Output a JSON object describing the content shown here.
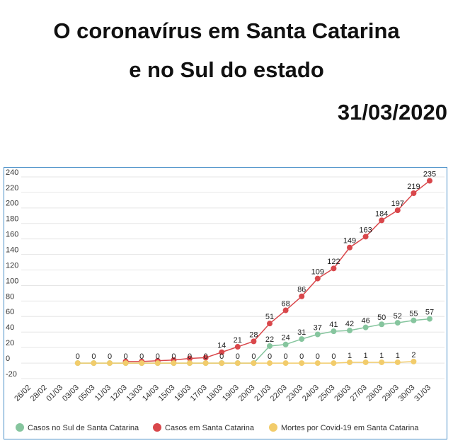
{
  "chart_data": {
    "type": "line",
    "title_lines": [
      "O coronavírus em Santa Catarina",
      "e no Sul do estado"
    ],
    "date": "31/03/2020",
    "categories": [
      "26/02",
      "28/02",
      "01/03",
      "03/03",
      "05/03",
      "11/03",
      "12/03",
      "13/03",
      "14/03",
      "15/03",
      "16/03",
      "17/03",
      "18/03",
      "19/03",
      "20/03",
      "21/03",
      "22/03",
      "23/03",
      "24/03",
      "25/03",
      "26/03",
      "27/03",
      "28/03",
      "29/03",
      "30/03",
      "31/03"
    ],
    "series": [
      {
        "name": "Casos no Sul de Santa Catarina",
        "color": "#86c59e",
        "values": [
          null,
          null,
          null,
          0,
          0,
          0,
          0,
          0,
          0,
          0,
          0,
          0,
          0,
          0,
          0,
          22,
          24,
          31,
          37,
          41,
          42,
          46,
          50,
          52,
          55,
          57
        ],
        "value_labels": [
          null,
          null,
          null,
          null,
          null,
          null,
          null,
          null,
          null,
          null,
          null,
          null,
          null,
          null,
          null,
          "22",
          "24",
          "31",
          "37",
          "41",
          "42",
          "46",
          "50",
          "52",
          "55",
          "57"
        ]
      },
      {
        "name": "Casos em Santa Catarina",
        "color": "#d9474b",
        "values": [
          null,
          null,
          null,
          null,
          null,
          null,
          2,
          2,
          3,
          4,
          6,
          7,
          14,
          21,
          28,
          51,
          68,
          86,
          109,
          122,
          149,
          163,
          184,
          197,
          219,
          235
        ],
        "value_labels": [
          null,
          null,
          null,
          null,
          null,
          null,
          null,
          null,
          null,
          null,
          null,
          null,
          "14",
          "21",
          "28",
          "51",
          "68",
          "86",
          "109",
          "122",
          "149",
          "163",
          "184",
          "197",
          "219",
          "235"
        ]
      },
      {
        "name": "Mortes por Covid-19 em Santa Catarina",
        "color": "#f2cc6b",
        "values": [
          null,
          null,
          null,
          0,
          0,
          0,
          0,
          0,
          0,
          0,
          0,
          0,
          0,
          0,
          0,
          0,
          0,
          0,
          0,
          0,
          1,
          1,
          1,
          1,
          2,
          null
        ],
        "value_labels": [
          null,
          null,
          null,
          "0",
          "0",
          "0",
          "0",
          "0",
          "0",
          "0",
          "0",
          "0",
          "0",
          "0",
          "0",
          "0",
          "0",
          "0",
          "0",
          "0",
          "1",
          "1",
          "1",
          "1",
          "2",
          null
        ]
      }
    ],
    "ylim": [
      -20,
      245
    ],
    "yticks": [
      -20,
      0,
      20,
      40,
      60,
      80,
      100,
      120,
      140,
      160,
      180,
      200,
      220,
      240
    ],
    "grid": true
  }
}
